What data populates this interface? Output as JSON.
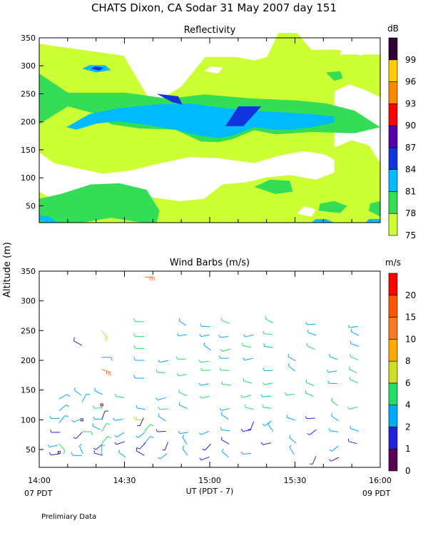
{
  "page": {
    "title": "CHATS Dixon, CA  Sodar  31 May 2007  day 151",
    "footer_note": "Prelimiary Data",
    "y_axis_label": "Altitude  (m)",
    "x_axis_label": "UT  (PDT - 7)",
    "x_left_date": "07 PDT",
    "x_right_date": "09 PDT"
  },
  "chart_data": [
    {
      "type": "heatmap",
      "title": "Reflectivity",
      "x_ticks": [
        "14:00",
        "14:30",
        "15:00",
        "15:30",
        "16:00"
      ],
      "xlim": [
        "14:00",
        "16:00"
      ],
      "ylim": [
        20,
        350
      ],
      "y_ticks": [
        50,
        100,
        150,
        200,
        250,
        300,
        350
      ],
      "colorbar_unit": "dB",
      "colorbar_ticks": [
        "75",
        "78",
        "81",
        "84",
        "87",
        "90",
        "93",
        "96",
        "99"
      ],
      "colorbar_colors": [
        "#ccff33",
        "#33dd55",
        "#00bbff",
        "#1133dd",
        "#5500aa",
        "#ff0000",
        "#ff8800",
        "#ffcc00",
        "#330033"
      ],
      "regions": [
        {
          "level": 75,
          "color": "#ccff33",
          "points": [
            [
              0,
              340
            ],
            [
              118,
              320
            ],
            [
              158,
              238
            ],
            [
              198,
              268
            ],
            [
              232,
              318
            ],
            [
              274,
              318
            ],
            [
              300,
              312
            ],
            [
              318,
              318
            ],
            [
              334,
              358
            ],
            [
              360,
              358
            ],
            [
              380,
              330
            ],
            [
              418,
              330
            ],
            [
              450,
              320
            ],
            [
              476,
              350
            ],
            [
              476,
              40
            ],
            [
              0,
              40
            ]
          ]
        },
        {
          "level": 78,
          "color": "#33dd55",
          "points": [
            [
              0,
              290
            ],
            [
              40,
              258
            ],
            [
              120,
              258
            ],
            [
              180,
              248
            ],
            [
              230,
              255
            ],
            [
              300,
              248
            ],
            [
              360,
              245
            ],
            [
              400,
              240
            ],
            [
              440,
              228
            ],
            [
              476,
              200
            ],
            [
              440,
              190
            ],
            [
              380,
              192
            ],
            [
              330,
              188
            ],
            [
              300,
              195
            ],
            [
              270,
              180
            ],
            [
              250,
              175
            ],
            [
              226,
              176
            ],
            [
              190,
              196
            ],
            [
              140,
              198
            ],
            [
              100,
              205
            ],
            [
              80,
              222
            ],
            [
              40,
              235
            ],
            [
              0,
              205
            ]
          ]
        },
        {
          "level": 78,
          "color": "#33dd55",
          "points": [
            [
              0,
              50
            ],
            [
              20,
              40
            ],
            [
              60,
              40
            ],
            [
              100,
              48
            ],
            [
              144,
              40
            ],
            [
              164,
              40
            ],
            [
              168,
              60
            ],
            [
              150,
              95
            ],
            [
              112,
              106
            ],
            [
              72,
              104
            ],
            [
              30,
              88
            ],
            [
              0,
              80
            ]
          ]
        },
        {
          "level": 78,
          "color": "#33dd55",
          "points": [
            [
              300,
              100
            ],
            [
              330,
              88
            ],
            [
              354,
              92
            ],
            [
              350,
              110
            ],
            [
              322,
              112
            ]
          ]
        },
        {
          "level": 78,
          "color": "#33dd55",
          "points": [
            [
              400,
              292
            ],
            [
              412,
              278
            ],
            [
              424,
              282
            ],
            [
              420,
              294
            ]
          ]
        },
        {
          "level": 78,
          "color": "#33dd55",
          "points": [
            [
              390,
              60
            ],
            [
              420,
              56
            ],
            [
              430,
              68
            ],
            [
              412,
              76
            ],
            [
              392,
              72
            ]
          ]
        },
        {
          "level": 78,
          "color": "#33dd55",
          "points": [
            [
              0,
              40
            ],
            [
              40,
              42
            ],
            [
              20,
              52
            ],
            [
              0,
              52
            ]
          ]
        },
        {
          "level": 78,
          "color": "#33dd55",
          "points": [
            [
              460,
              60
            ],
            [
              476,
              50
            ],
            [
              476,
              76
            ],
            [
              462,
              72
            ]
          ]
        },
        {
          "level": 81,
          "color": "#00bbff",
          "points": [
            [
              38,
              200
            ],
            [
              70,
              222
            ],
            [
              110,
              232
            ],
            [
              160,
              238
            ],
            [
              210,
              240
            ],
            [
              260,
              232
            ],
            [
              300,
              228
            ],
            [
              340,
              225
            ],
            [
              380,
              222
            ],
            [
              412,
              218
            ],
            [
              412,
              208
            ],
            [
              380,
              200
            ],
            [
              350,
              196
            ],
            [
              330,
              196
            ],
            [
              300,
              200
            ],
            [
              270,
              186
            ],
            [
              250,
              182
            ],
            [
              224,
              186
            ],
            [
              190,
              196
            ],
            [
              150,
              204
            ],
            [
              110,
              210
            ],
            [
              80,
              206
            ],
            [
              52,
              196
            ]
          ]
        },
        {
          "level": 81,
          "color": "#00bbff",
          "points": [
            [
              0,
              45
            ],
            [
              8,
              40
            ],
            [
              26,
              40
            ],
            [
              14,
              50
            ],
            [
              0,
              52
            ]
          ]
        },
        {
          "level": 81,
          "color": "#00bbff",
          "points": [
            [
              60,
              298
            ],
            [
              80,
              292
            ],
            [
              100,
              296
            ],
            [
              92,
              304
            ],
            [
              70,
              304
            ]
          ]
        },
        {
          "level": 81,
          "color": "#00bbff",
          "points": [
            [
              380,
              40
            ],
            [
              412,
              40
            ],
            [
              400,
              46
            ],
            [
              386,
              46
            ]
          ]
        },
        {
          "level": 81,
          "color": "#00bbff",
          "points": [
            [
              456,
              40
            ],
            [
              476,
              40
            ],
            [
              476,
              46
            ],
            [
              460,
              46
            ]
          ]
        },
        {
          "level": 84,
          "color": "#1133dd",
          "points": [
            [
              164,
              256
            ],
            [
              194,
              252
            ],
            [
              200,
              238
            ],
            [
              186,
              242
            ]
          ]
        },
        {
          "level": 84,
          "color": "#1133dd",
          "points": [
            [
              260,
              202
            ],
            [
              285,
              202
            ],
            [
              310,
              235
            ],
            [
              278,
              235
            ]
          ]
        },
        {
          "level": 84,
          "color": "#1133dd",
          "points": [
            [
              72,
              298
            ],
            [
              84,
              295
            ],
            [
              90,
              300
            ],
            [
              78,
              302
            ]
          ]
        }
      ],
      "white_regions": [
        {
          "points": [
            [
              0,
              158
            ],
            [
              20,
              140
            ],
            [
              50,
              132
            ],
            [
              90,
              122
            ],
            [
              130,
              128
            ],
            [
              170,
              140
            ],
            [
              210,
              150
            ],
            [
              250,
              148
            ],
            [
              300,
              140
            ],
            [
              334,
              152
            ],
            [
              370,
              160
            ],
            [
              400,
              154
            ],
            [
              412,
              145
            ],
            [
              412,
              124
            ],
            [
              386,
              112
            ],
            [
              350,
              120
            ],
            [
              318,
              116
            ],
            [
              290,
              108
            ],
            [
              256,
              104
            ],
            [
              230,
              80
            ],
            [
              196,
              76
            ],
            [
              160,
              82
            ],
            [
              132,
              84
            ],
            [
              108,
              80
            ],
            [
              80,
              86
            ],
            [
              48,
              74
            ],
            [
              14,
              82
            ],
            [
              0,
              92
            ]
          ]
        },
        {
          "points": [
            [
              412,
              166
            ],
            [
              436,
              178
            ],
            [
              460,
              170
            ],
            [
              476,
              140
            ],
            [
              476,
              250
            ],
            [
              456,
              262
            ],
            [
              432,
              272
            ],
            [
              412,
              260
            ]
          ]
        },
        {
          "points": [
            [
              420,
              322
            ],
            [
              476,
              322
            ],
            [
              476,
              350
            ],
            [
              428,
              350
            ]
          ]
        },
        {
          "points": [
            [
              230,
              294
            ],
            [
              250,
              290
            ],
            [
              256,
              300
            ],
            [
              240,
              302
            ]
          ]
        },
        {
          "points": [
            [
              360,
              55
            ],
            [
              380,
              50
            ],
            [
              386,
              62
            ],
            [
              370,
              68
            ]
          ]
        }
      ]
    },
    {
      "type": "scatter",
      "title": "Wind Barbs (m/s)",
      "x_ticks": [
        "14:00",
        "14:30",
        "15:00",
        "15:30",
        "16:00"
      ],
      "xlim": [
        "14:00",
        "16:00"
      ],
      "ylim": [
        20,
        350
      ],
      "y_ticks": [
        50,
        100,
        150,
        200,
        250,
        300,
        350
      ],
      "colorbar_unit": "m/s",
      "colorbar_ticks": [
        "0",
        "1",
        "2",
        "4",
        "6",
        "8",
        "10",
        "15",
        "20"
      ],
      "colorbar_colors": [
        "#550055",
        "#2222dd",
        "#00aaff",
        "#22dd66",
        "#ccdd22",
        "#ffaa00",
        "#ff7722",
        "#ff5500",
        "#ff0000"
      ],
      "barbs": [
        {
          "t": "14:07",
          "z": 135,
          "dir": 60,
          "speed": 3
        },
        {
          "t": "14:07",
          "z": 115,
          "dir": 50,
          "speed": 3
        },
        {
          "t": "14:07",
          "z": 95,
          "dir": 40,
          "speed": 3
        },
        {
          "t": "14:07",
          "z": 60,
          "dir": 140,
          "speed": 5
        },
        {
          "t": "14:07",
          "z": 45,
          "dir": 0,
          "speed": 0
        },
        {
          "t": "14:15",
          "z": 225,
          "dir": 300,
          "speed": 1
        },
        {
          "t": "14:15",
          "z": 130,
          "dir": 30,
          "speed": 3
        },
        {
          "t": "14:15",
          "z": 100,
          "dir": 0,
          "speed": 0
        },
        {
          "t": "14:15",
          "z": 80,
          "dir": 90,
          "speed": 4
        },
        {
          "t": "14:15",
          "z": 40,
          "dir": 270,
          "speed": 3
        },
        {
          "t": "14:22",
          "z": 250,
          "dir": 140,
          "speed": 7
        },
        {
          "t": "14:22",
          "z": 205,
          "dir": 90,
          "speed": 3
        },
        {
          "t": "14:22",
          "z": 185,
          "dir": 110,
          "speed": 12
        },
        {
          "t": "14:22",
          "z": 125,
          "dir": 0,
          "speed": 0
        },
        {
          "t": "14:22",
          "z": 100,
          "dir": 20,
          "speed": 1
        },
        {
          "t": "14:22",
          "z": 80,
          "dir": 30,
          "speed": 4
        },
        {
          "t": "14:22",
          "z": 60,
          "dir": 40,
          "speed": 4
        },
        {
          "t": "14:22",
          "z": 40,
          "dir": 0,
          "speed": 4
        },
        {
          "t": "14:37",
          "z": 340,
          "dir": 90,
          "speed": 11
        },
        {
          "t": "14:37",
          "z": 265,
          "dir": 270,
          "speed": 4
        },
        {
          "t": "14:37",
          "z": 240,
          "dir": 270,
          "speed": 5
        },
        {
          "t": "14:37",
          "z": 220,
          "dir": 270,
          "speed": 5
        },
        {
          "t": "14:37",
          "z": 200,
          "dir": 270,
          "speed": 3
        },
        {
          "t": "14:37",
          "z": 170,
          "dir": 270,
          "speed": 3
        },
        {
          "t": "14:37",
          "z": 100,
          "dir": 270,
          "speed": 7
        },
        {
          "t": "14:37",
          "z": 80,
          "dir": 40,
          "speed": 4
        },
        {
          "t": "14:37",
          "z": 60,
          "dir": 40,
          "speed": 3
        },
        {
          "t": "14:37",
          "z": 40,
          "dir": 300,
          "speed": 1
        }
      ]
    }
  ]
}
